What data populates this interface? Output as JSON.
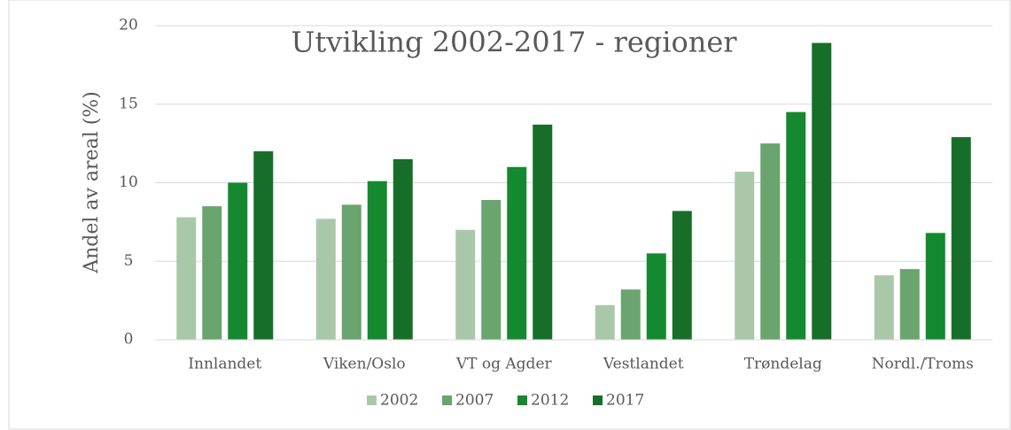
{
  "chart_data": {
    "type": "bar",
    "title": "Utvikling 2002-2017 - regioner",
    "ylabel": "Andel av areal (%)",
    "categories": [
      "Innlandet",
      "Viken/Oslo",
      "VT og Agder",
      "Vestlandet",
      "Trøndelag",
      "Nordl./Troms"
    ],
    "series": [
      {
        "name": "2002",
        "color": "#a9c8aa",
        "values": [
          7.8,
          7.7,
          7.0,
          2.2,
          10.7,
          4.1
        ]
      },
      {
        "name": "2007",
        "color": "#6aa46f",
        "values": [
          8.5,
          8.6,
          8.9,
          3.2,
          12.5,
          4.5
        ]
      },
      {
        "name": "2012",
        "color": "#14892f",
        "values": [
          10.0,
          10.1,
          11.0,
          5.5,
          14.5,
          6.8
        ]
      },
      {
        "name": "2017",
        "color": "#176e29",
        "values": [
          12.0,
          11.5,
          13.7,
          8.2,
          18.9,
          12.9
        ]
      }
    ],
    "ylim": [
      0,
      20
    ],
    "yticks": [
      0,
      5,
      10,
      15,
      20
    ],
    "grid": true,
    "legend": "bottom"
  }
}
